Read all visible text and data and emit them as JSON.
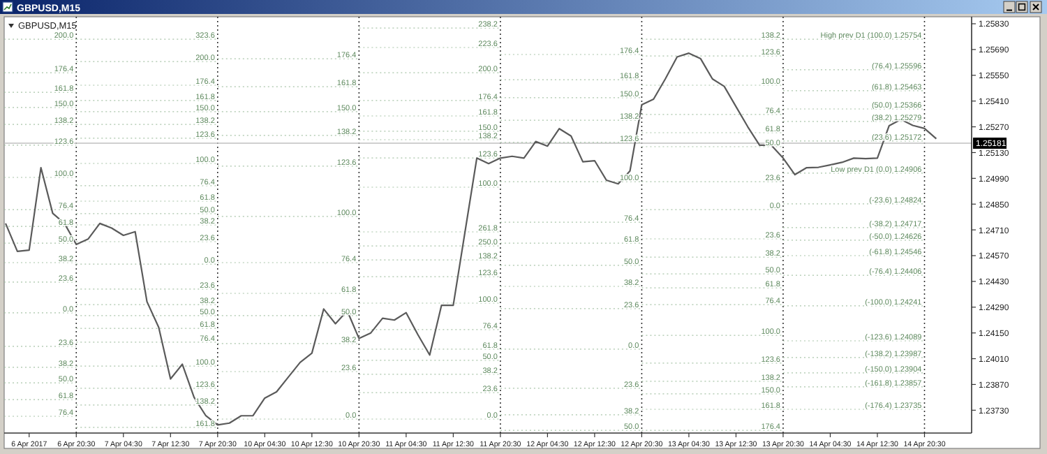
{
  "chart_data": {
    "type": "line",
    "title": "GBPUSD,M15",
    "subtitle": "GBPUSD,M15",
    "categories": [
      null,
      null,
      "6 Apr 2017",
      null,
      null,
      null,
      "6 Apr 20:30",
      null,
      null,
      null,
      "7 Apr 04:30",
      null,
      null,
      null,
      "7 Apr 12:30",
      null,
      null,
      null,
      "7 Apr 20:30",
      null,
      null,
      null,
      "10 Apr 04:30",
      null,
      null,
      null,
      "10 Apr 12:30",
      null,
      null,
      null,
      "10 Apr 20:30",
      null,
      null,
      null,
      "11 Apr 04:30",
      null,
      null,
      null,
      "11 Apr 12:30",
      null,
      null,
      null,
      "11 Apr 20:30",
      null,
      null,
      null,
      "12 Apr 04:30",
      null,
      null,
      null,
      "12 Apr 12:30",
      null,
      null,
      null,
      "12 Apr 20:30",
      null,
      null,
      null,
      "13 Apr 04:30",
      null,
      null,
      null,
      "13 Apr 12:30",
      null,
      null,
      null,
      "13 Apr 20:30",
      null,
      null,
      null,
      "14 Apr 04:30",
      null,
      null,
      null,
      "14 Apr 12:30",
      null,
      null,
      null,
      "14 Apr 20:30",
      null,
      null,
      null,
      null
    ],
    "ylim": [
      1.23606,
      1.25868
    ],
    "yticks": [
      {
        "value": 1.2583,
        "label": "1.25830"
      },
      {
        "value": 1.2569,
        "label": "1.25690"
      },
      {
        "value": 1.2555,
        "label": "1.25550"
      },
      {
        "value": 1.2541,
        "label": "1.25410"
      },
      {
        "value": 1.2527,
        "label": "1.25270"
      },
      {
        "value": 1.2513,
        "label": "1.25130"
      },
      {
        "value": 1.2499,
        "label": "1.24990"
      },
      {
        "value": 1.2485,
        "label": "1.24850"
      },
      {
        "value": 1.2471,
        "label": "1.24710"
      },
      {
        "value": 1.2457,
        "label": "1.24570"
      },
      {
        "value": 1.2443,
        "label": "1.24430"
      },
      {
        "value": 1.2429,
        "label": "1.24290"
      },
      {
        "value": 1.2415,
        "label": "1.24150"
      },
      {
        "value": 1.2401,
        "label": "1.24010"
      },
      {
        "value": 1.2387,
        "label": "1.23870"
      },
      {
        "value": 1.2373,
        "label": "1.23730"
      }
    ],
    "series": [
      {
        "color": "#5a5a5a",
        "values": [
          1.24745,
          1.24593,
          1.246,
          1.25048,
          1.248,
          1.24745,
          1.24631,
          1.2466,
          1.24745,
          1.2472,
          1.2468,
          1.247,
          1.2432,
          1.2418,
          1.239,
          1.2398,
          1.238,
          1.237,
          1.2365,
          1.2366,
          1.237,
          1.237,
          1.23796,
          1.2383,
          1.2391,
          1.2399,
          1.2404,
          1.2428,
          1.242,
          1.2427,
          1.2412,
          1.2415,
          1.2423,
          1.2422,
          1.2426,
          1.2414,
          1.2403,
          1.243,
          1.243,
          1.247,
          1.251,
          1.2507,
          1.251,
          1.2511,
          1.251,
          1.2519,
          1.25165,
          1.2526,
          1.2522,
          1.2508,
          1.25086,
          1.2498,
          1.2496,
          1.2503,
          1.2539,
          1.2542,
          1.2553,
          1.2565,
          1.2567,
          1.2564,
          1.2553,
          1.2549,
          1.2538,
          1.2527,
          1.2517,
          1.2517,
          1.251,
          1.2501,
          1.25048,
          1.2505,
          1.25063,
          1.25077,
          1.251,
          1.25097,
          1.251,
          1.25276,
          1.2531,
          1.25278,
          1.25261,
          1.25205,
          null,
          null,
          null
        ]
      }
    ],
    "ref_lines": [
      {
        "axis": "x",
        "value": "6 Apr 20:30",
        "line_style": "dotted",
        "color": "#333333"
      },
      {
        "axis": "x",
        "value": "7 Apr 20:30",
        "line_style": "dotted",
        "color": "#333333"
      },
      {
        "axis": "x",
        "value": "10 Apr 20:30",
        "line_style": "dotted",
        "color": "#333333"
      },
      {
        "axis": "x",
        "value": "11 Apr 20:30",
        "line_style": "dotted",
        "color": "#333333"
      },
      {
        "axis": "x",
        "value": "12 Apr 20:30",
        "line_style": "dotted",
        "color": "#333333"
      },
      {
        "axis": "x",
        "value": "13 Apr 20:30",
        "line_style": "dotted",
        "color": "#333333"
      },
      {
        "axis": "x",
        "value": "14 Apr 20:30",
        "line_style": "dotted",
        "color": "#333333"
      },
      {
        "axis": "y",
        "value": 1.25181,
        "label": "1.25181",
        "color": "#c0c0c0",
        "line_style": "solid"
      }
    ],
    "annotations": [
      {
        "text": "200.0",
        "x": "6 Apr 20:30",
        "y": 1.25746
      },
      {
        "text": "176.4",
        "x": "6 Apr 20:30",
        "y": 1.25564
      },
      {
        "text": "161.8",
        "x": "6 Apr 20:30",
        "y": 1.25458
      },
      {
        "text": "150.0",
        "x": "6 Apr 20:30",
        "y": 1.25375
      },
      {
        "text": "138.2",
        "x": "6 Apr 20:30",
        "y": 1.25283
      },
      {
        "text": "123.6",
        "x": "6 Apr 20:30",
        "y": 1.2517
      },
      {
        "text": "100.0",
        "x": "6 Apr 20:30",
        "y": 1.24995
      },
      {
        "text": "76.4",
        "x": "6 Apr 20:30",
        "y": 1.2482
      },
      {
        "text": "61.8",
        "x": "6 Apr 20:30",
        "y": 1.24729
      },
      {
        "text": "50.0",
        "x": "6 Apr 20:30",
        "y": 1.24638
      },
      {
        "text": "38.2",
        "x": "6 Apr 20:30",
        "y": 1.24532
      },
      {
        "text": "23.6",
        "x": "6 Apr 20:30",
        "y": 1.24426
      },
      {
        "text": "0.0",
        "x": "6 Apr 20:30",
        "y": 1.24259
      },
      {
        "text": "23.6",
        "x": "6 Apr 20:30",
        "y": 1.24077
      },
      {
        "text": "38.2",
        "x": "6 Apr 20:30",
        "y": 1.23963
      },
      {
        "text": "50.0",
        "x": "6 Apr 20:30",
        "y": 1.23879
      },
      {
        "text": "61.8",
        "x": "6 Apr 20:30",
        "y": 1.23788
      },
      {
        "text": "76.4",
        "x": "6 Apr 20:30",
        "y": 1.23697
      },
      {
        "text": "323.6",
        "x": "7 Apr 20:30",
        "y": 1.25746
      },
      {
        "text": "200.0",
        "x": "7 Apr 20:30",
        "y": 1.25625
      },
      {
        "text": "176.4",
        "x": "7 Apr 20:30",
        "y": 1.25496
      },
      {
        "text": "161.8",
        "x": "7 Apr 20:30",
        "y": 1.25413
      },
      {
        "text": "150.0",
        "x": "7 Apr 20:30",
        "y": 1.25352
      },
      {
        "text": "138.2",
        "x": "7 Apr 20:30",
        "y": 1.25283
      },
      {
        "text": "123.6",
        "x": "7 Apr 20:30",
        "y": 1.25208
      },
      {
        "text": "100.0",
        "x": "7 Apr 20:30",
        "y": 1.25071
      },
      {
        "text": "76.4",
        "x": "7 Apr 20:30",
        "y": 1.2495
      },
      {
        "text": "61.8",
        "x": "7 Apr 20:30",
        "y": 1.24866
      },
      {
        "text": "50.0",
        "x": "7 Apr 20:30",
        "y": 1.24798
      },
      {
        "text": "38.2",
        "x": "7 Apr 20:30",
        "y": 1.24737
      },
      {
        "text": "23.6",
        "x": "7 Apr 20:30",
        "y": 1.24646
      },
      {
        "text": "0.0",
        "x": "7 Apr 20:30",
        "y": 1.24524
      },
      {
        "text": "23.6",
        "x": "7 Apr 20:30",
        "y": 1.24388
      },
      {
        "text": "38.2",
        "x": "7 Apr 20:30",
        "y": 1.24304
      },
      {
        "text": "50.0",
        "x": "7 Apr 20:30",
        "y": 1.24244
      },
      {
        "text": "61.8",
        "x": "7 Apr 20:30",
        "y": 1.24175
      },
      {
        "text": "76.4",
        "x": "7 Apr 20:30",
        "y": 1.241
      },
      {
        "text": "100.0",
        "x": "7 Apr 20:30",
        "y": 1.2397
      },
      {
        "text": "123.6",
        "x": "7 Apr 20:30",
        "y": 1.23849
      },
      {
        "text": "138.2",
        "x": "7 Apr 20:30",
        "y": 1.23758
      },
      {
        "text": "161.8",
        "x": "7 Apr 20:30",
        "y": 1.23637
      },
      {
        "text": "176.4",
        "x": "10 Apr 20:30",
        "y": 1.2564
      },
      {
        "text": "161.8",
        "x": "10 Apr 20:30",
        "y": 1.25488
      },
      {
        "text": "150.0",
        "x": "10 Apr 20:30",
        "y": 1.25352
      },
      {
        "text": "138.2",
        "x": "10 Apr 20:30",
        "y": 1.25223
      },
      {
        "text": "123.6",
        "x": "10 Apr 20:30",
        "y": 1.25056
      },
      {
        "text": "100.0",
        "x": "10 Apr 20:30",
        "y": 1.24783
      },
      {
        "text": "76.4",
        "x": "10 Apr 20:30",
        "y": 1.24532
      },
      {
        "text": "61.8",
        "x": "10 Apr 20:30",
        "y": 1.24365
      },
      {
        "text": "50.0",
        "x": "10 Apr 20:30",
        "y": 1.24244
      },
      {
        "text": "38.2",
        "x": "10 Apr 20:30",
        "y": 1.24092
      },
      {
        "text": "23.6",
        "x": "10 Apr 20:30",
        "y": 1.2394
      },
      {
        "text": "0.0",
        "x": "10 Apr 20:30",
        "y": 1.23682
      },
      {
        "text": "238.2",
        "x": "11 Apr 20:30",
        "y": 1.25807
      },
      {
        "text": "223.6",
        "x": "11 Apr 20:30",
        "y": 1.25701
      },
      {
        "text": "200.0",
        "x": "11 Apr 20:30",
        "y": 1.25564
      },
      {
        "text": "176.4",
        "x": "11 Apr 20:30",
        "y": 1.25413
      },
      {
        "text": "161.8",
        "x": "11 Apr 20:30",
        "y": 1.25329
      },
      {
        "text": "150.0",
        "x": "11 Apr 20:30",
        "y": 1.25246
      },
      {
        "text": "138.2",
        "x": "11 Apr 20:30",
        "y": 1.252
      },
      {
        "text": "123.6",
        "x": "11 Apr 20:30",
        "y": 1.25101
      },
      {
        "text": "100.0",
        "x": "11 Apr 20:30",
        "y": 1.24942
      },
      {
        "text": "261.8",
        "x": "11 Apr 20:30",
        "y": 1.24699
      },
      {
        "text": "250.0",
        "x": "11 Apr 20:30",
        "y": 1.24623
      },
      {
        "text": "138.2",
        "x": "11 Apr 20:30",
        "y": 1.24547
      },
      {
        "text": "123.6",
        "x": "11 Apr 20:30",
        "y": 1.24456
      },
      {
        "text": "100.0",
        "x": "11 Apr 20:30",
        "y": 1.24312
      },
      {
        "text": "76.4",
        "x": "11 Apr 20:30",
        "y": 1.24168
      },
      {
        "text": "61.8",
        "x": "11 Apr 20:30",
        "y": 1.24062
      },
      {
        "text": "50.0",
        "x": "11 Apr 20:30",
        "y": 1.24001
      },
      {
        "text": "38.2",
        "x": "11 Apr 20:30",
        "y": 1.23925
      },
      {
        "text": "23.6",
        "x": "11 Apr 20:30",
        "y": 1.23826
      },
      {
        "text": "0.0",
        "x": "11 Apr 20:30",
        "y": 1.23682
      },
      {
        "text": "176.4",
        "x": "12 Apr 20:30",
        "y": 1.25663
      },
      {
        "text": "161.8",
        "x": "12 Apr 20:30",
        "y": 1.25526
      },
      {
        "text": "150.0",
        "x": "12 Apr 20:30",
        "y": 1.25428
      },
      {
        "text": "138.2",
        "x": "12 Apr 20:30",
        "y": 1.25306
      },
      {
        "text": "123.6",
        "x": "12 Apr 20:30",
        "y": 1.25185
      },
      {
        "text": "100.0",
        "x": "12 Apr 20:30",
        "y": 1.24972
      },
      {
        "text": "76.4",
        "x": "12 Apr 20:30",
        "y": 1.24752
      },
      {
        "text": "61.8",
        "x": "12 Apr 20:30",
        "y": 1.24638
      },
      {
        "text": "50.0",
        "x": "12 Apr 20:30",
        "y": 1.24517
      },
      {
        "text": "38.2",
        "x": "12 Apr 20:30",
        "y": 1.24403
      },
      {
        "text": "23.6",
        "x": "12 Apr 20:30",
        "y": 1.24282
      },
      {
        "text": "0.0",
        "x": "12 Apr 20:30",
        "y": 1.24062
      },
      {
        "text": "23.6",
        "x": "12 Apr 20:30",
        "y": 1.23849
      },
      {
        "text": "38.2",
        "x": "12 Apr 20:30",
        "y": 1.23705
      },
      {
        "text": "50.0",
        "x": "12 Apr 20:30",
        "y": 1.23621
      },
      {
        "text": "138.2",
        "x": "13 Apr 20:30",
        "y": 1.25746
      },
      {
        "text": "123.6",
        "x": "13 Apr 20:30",
        "y": 1.25655
      },
      {
        "text": "100.0",
        "x": "13 Apr 20:30",
        "y": 1.25496
      },
      {
        "text": "76.4",
        "x": "13 Apr 20:30",
        "y": 1.25337
      },
      {
        "text": "61.8",
        "x": "13 Apr 20:30",
        "y": 1.25238
      },
      {
        "text": "50.0",
        "x": "13 Apr 20:30",
        "y": 1.25162
      },
      {
        "text": "23.6",
        "x": "13 Apr 20:30",
        "y": 1.24972
      },
      {
        "text": "0.0",
        "x": "13 Apr 20:30",
        "y": 1.2482
      },
      {
        "text": "23.6",
        "x": "13 Apr 20:30",
        "y": 1.24661
      },
      {
        "text": "38.2",
        "x": "13 Apr 20:30",
        "y": 1.24562
      },
      {
        "text": "50.0",
        "x": "13 Apr 20:30",
        "y": 1.24471
      },
      {
        "text": "61.8",
        "x": "13 Apr 20:30",
        "y": 1.24395
      },
      {
        "text": "76.4",
        "x": "13 Apr 20:30",
        "y": 1.24304
      },
      {
        "text": "100.0",
        "x": "13 Apr 20:30",
        "y": 1.24137
      },
      {
        "text": "123.6",
        "x": "13 Apr 20:30",
        "y": 1.23986
      },
      {
        "text": "138.2",
        "x": "13 Apr 20:30",
        "y": 1.23887
      },
      {
        "text": "150.0",
        "x": "13 Apr 20:30",
        "y": 1.23819
      },
      {
        "text": "161.8",
        "x": "13 Apr 20:30",
        "y": 1.23735
      },
      {
        "text": "176.4",
        "x": "13 Apr 20:30",
        "y": 1.23621
      },
      {
        "text": "High prev D1 (100.0) 1.25754",
        "x": "14 Apr 20:30",
        "y": 1.25746
      },
      {
        "text": "(76.4) 1.25596",
        "x": "14 Apr 20:30",
        "y": 1.2558
      },
      {
        "text": "(61.8) 1.25463",
        "x": "14 Apr 20:30",
        "y": 1.25466
      },
      {
        "text": "(50.0) 1.25366",
        "x": "14 Apr 20:30",
        "y": 1.25367
      },
      {
        "text": "(38.2) 1.25279",
        "x": "14 Apr 20:30",
        "y": 1.25299
      },
      {
        "text": "(23.6) 1.25172",
        "x": "14 Apr 20:30",
        "y": 1.25193
      },
      {
        "text": "Low prev D1 (0.0) 1.24906",
        "x": "14 Apr 20:30",
        "y": 1.25018
      },
      {
        "text": "(-23.6) 1.24824",
        "x": "14 Apr 20:30",
        "y": 1.24851
      },
      {
        "text": "(-38.2) 1.24717",
        "x": "14 Apr 20:30",
        "y": 1.24722
      },
      {
        "text": "(-50.0) 1.24626",
        "x": "14 Apr 20:30",
        "y": 1.24654
      },
      {
        "text": "(-61.8) 1.24546",
        "x": "14 Apr 20:30",
        "y": 1.2457
      },
      {
        "text": "(-76.4) 1.24406",
        "x": "14 Apr 20:30",
        "y": 1.24463
      },
      {
        "text": "(-100.0) 1.24241",
        "x": "14 Apr 20:30",
        "y": 1.24297
      },
      {
        "text": "(-123.6) 1.24089",
        "x": "14 Apr 20:30",
        "y": 1.24107
      },
      {
        "text": "(-138.2) 1.23987",
        "x": "14 Apr 20:30",
        "y": 1.24016
      },
      {
        "text": "(-150.0) 1.23904",
        "x": "14 Apr 20:30",
        "y": 1.23933
      },
      {
        "text": "(-161.8) 1.23857",
        "x": "14 Apr 20:30",
        "y": 1.23857
      },
      {
        "text": "(-176.4) 1.23735",
        "x": "14 Apr 20:30",
        "y": 1.23735
      }
    ]
  }
}
